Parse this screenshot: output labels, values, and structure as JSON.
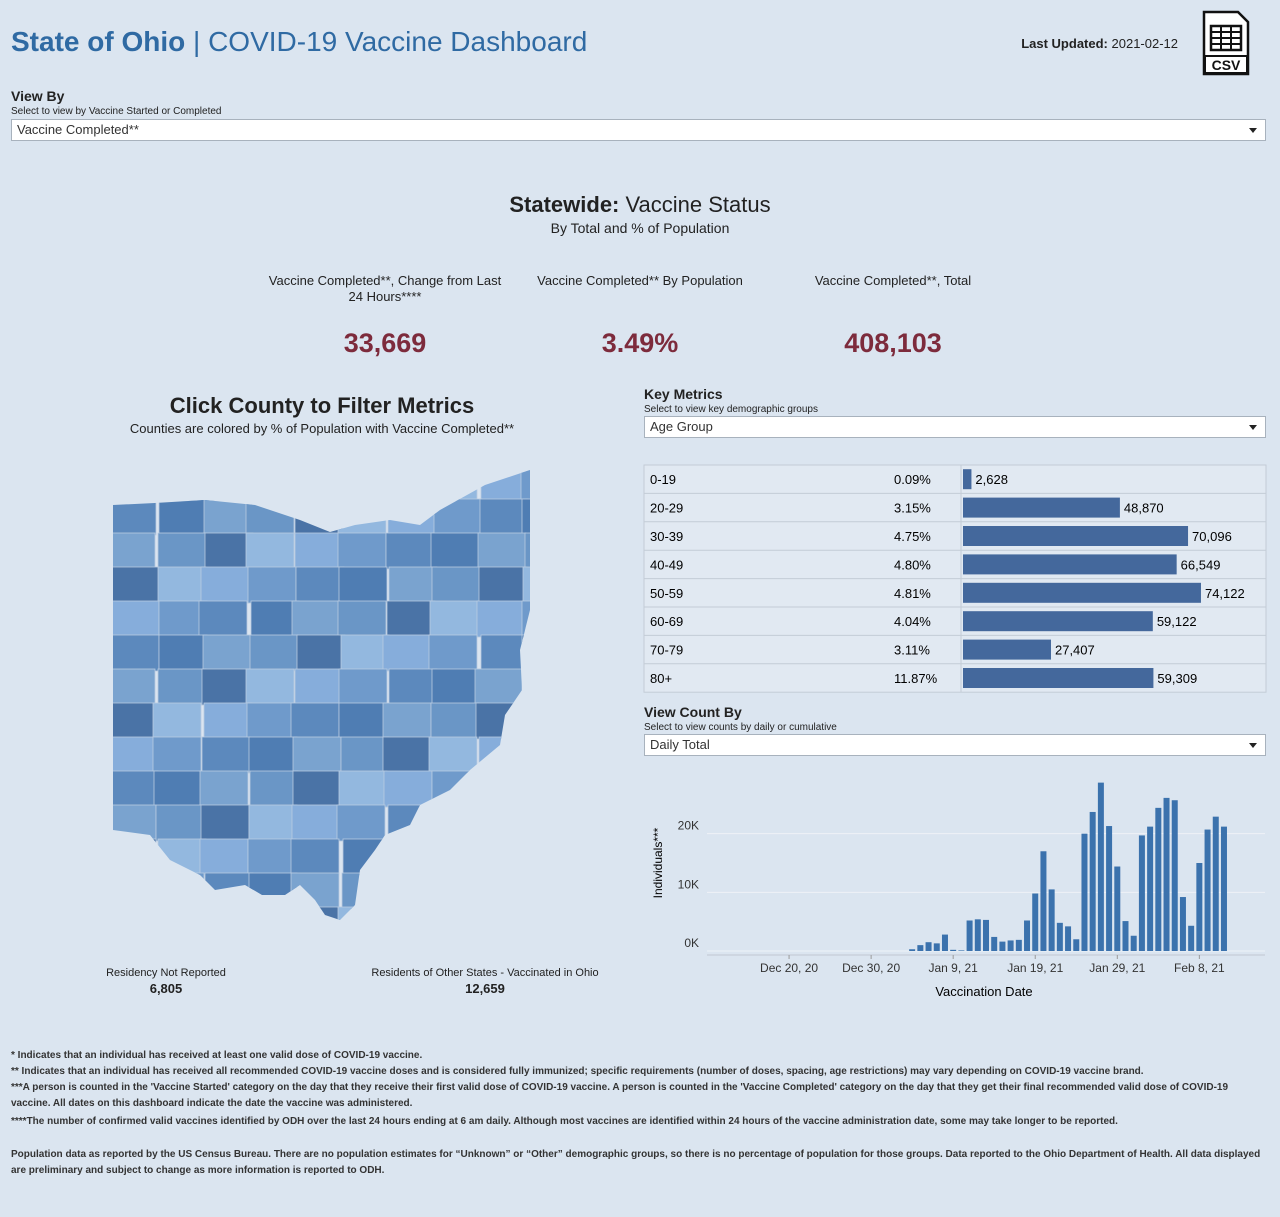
{
  "header": {
    "title": "State of Ohio",
    "subtitle": "| COVID-19 Vaccine Dashboard",
    "last_updated_label": "Last Updated:",
    "last_updated": "2021-02-12",
    "csv_icon": "CSV"
  },
  "view_by": {
    "title": "View By",
    "hint": "Select to view by Vaccine Started or Completed",
    "selected": "Vaccine Completed**"
  },
  "statewide": {
    "title": "Statewide:",
    "title_rest": "Vaccine Status",
    "subtitle": "By Total and % of Population",
    "kpis": [
      {
        "label": "Vaccine Completed**, Change from Last 24 Hours****",
        "value": "33,669"
      },
      {
        "label": "Vaccine Completed** By Population",
        "value": "3.49%"
      },
      {
        "label": "Vaccine Completed**, Total",
        "value": "408,103"
      }
    ]
  },
  "map": {
    "title": "Click County to Filter Metrics",
    "subtitle": "Counties are colored by % of Population with Vaccine Completed**",
    "notes": [
      {
        "label": "Residency Not Reported",
        "value": "6,805"
      },
      {
        "label": "Residents of Other States - Vaccinated in Ohio",
        "value": "12,659"
      }
    ]
  },
  "key_metrics": {
    "title": "Key Metrics",
    "hint": "Select to view key demographic groups",
    "selected": "Age Group"
  },
  "view_count": {
    "title": "View Count By",
    "hint": "Select to view counts by daily or cumulative",
    "selected": "Daily Total"
  },
  "chart_data": [
    {
      "type": "bar",
      "orientation": "horizontal",
      "categories": [
        "0-19",
        "20-29",
        "30-39",
        "40-49",
        "50-59",
        "60-69",
        "70-79",
        "80+"
      ],
      "percent_labels": [
        "0.09%",
        "3.15%",
        "4.75%",
        "4.80%",
        "4.81%",
        "4.04%",
        "3.11%",
        "11.87%"
      ],
      "values": [
        2628,
        48870,
        70096,
        66549,
        74122,
        59122,
        27407,
        59309
      ],
      "value_labels": [
        "2,628",
        "48,870",
        "70,096",
        "66,549",
        "74,122",
        "59,122",
        "27,407",
        "59,309"
      ],
      "color": "#44689c",
      "xlim": [
        0,
        95000
      ]
    },
    {
      "type": "bar",
      "xlabel": "Vaccination Date",
      "ylabel": "Individuals***",
      "color": "#3b72ad",
      "x": [
        "2021-01-04",
        "2021-01-05",
        "2021-01-06",
        "2021-01-07",
        "2021-01-08",
        "2021-01-09",
        "2021-01-10",
        "2021-01-11",
        "2021-01-12",
        "2021-01-13",
        "2021-01-14",
        "2021-01-15",
        "2021-01-16",
        "2021-01-17",
        "2021-01-18",
        "2021-01-19",
        "2021-01-20",
        "2021-01-21",
        "2021-01-22",
        "2021-01-23",
        "2021-01-24",
        "2021-01-25",
        "2021-01-26",
        "2021-01-27",
        "2021-01-28",
        "2021-01-29",
        "2021-01-30",
        "2021-01-31",
        "2021-02-01",
        "2021-02-02",
        "2021-02-03",
        "2021-02-04",
        "2021-02-05",
        "2021-02-06",
        "2021-02-07",
        "2021-02-08",
        "2021-02-09",
        "2021-02-10",
        "2021-02-11"
      ],
      "values": [
        300,
        1000,
        1500,
        1300,
        2800,
        200,
        100,
        5200,
        5400,
        5300,
        2400,
        1600,
        1800,
        1900,
        5200,
        9800,
        17000,
        10500,
        4800,
        4200,
        2000,
        20000,
        23700,
        28700,
        21300,
        14400,
        5100,
        2600,
        19700,
        21200,
        24400,
        26100,
        25700,
        9200,
        4300,
        15000,
        20700,
        22900,
        21200
      ],
      "xlim": [
        "2020-12-10",
        "2021-02-16"
      ],
      "xticks": [
        {
          "value": "2020-12-20",
          "label": "Dec 20, 20"
        },
        {
          "value": "2020-12-30",
          "label": "Dec 30, 20"
        },
        {
          "value": "2021-01-09",
          "label": "Jan 9, 21"
        },
        {
          "value": "2021-01-19",
          "label": "Jan 19, 21"
        },
        {
          "value": "2021-01-29",
          "label": "Jan 29, 21"
        },
        {
          "value": "2021-02-08",
          "label": "Feb 8, 21"
        }
      ],
      "ylim": [
        0,
        30000
      ],
      "yticks": [
        {
          "value": 0,
          "label": "0K"
        },
        {
          "value": 10000,
          "label": "10K"
        },
        {
          "value": 20000,
          "label": "20K"
        }
      ],
      "grid": true
    }
  ],
  "footnotes": [
    "* Indicates that an individual has received at least one valid dose of COVID-19 vaccine.",
    "** Indicates that an individual has received all recommended COVID-19 vaccine doses and is considered fully immunized; specific requirements (number of doses, spacing, age restrictions) may vary depending on COVID-19 vaccine brand.",
    "***A person is counted in the 'Vaccine Started' category on the day that they receive their first valid dose of COVID-19 vaccine.  A person is counted in the 'Vaccine Completed' category on the day that they get their final recommended valid dose of COVID-19 vaccine. All dates on this dashboard indicate the date the vaccine was administered.",
    "****The number of confirmed valid vaccines identified by ODH over the last 24 hours ending at 6 am daily. Although most vaccines are identified within 24 hours of the vaccine administration date, some may take longer to be reported.",
    "Population data as reported by the US Census Bureau. There are no population estimates for “Unknown” or “Other” demographic groups, so there is no percentage of population for those groups.  Data reported to the Ohio Department of Health.  All data displayed are preliminary and subject to change as more information is reported to ODH."
  ]
}
